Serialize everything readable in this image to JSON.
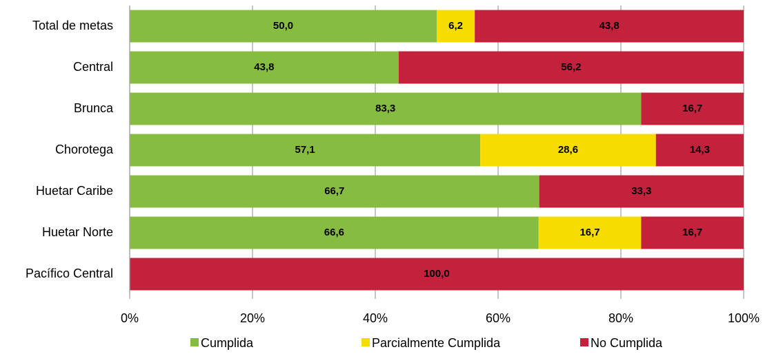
{
  "chart_data": {
    "type": "bar",
    "orientation": "horizontal",
    "stacked": true,
    "categories": [
      "Total de metas",
      "Central",
      "Brunca",
      "Chorotega",
      "Huetar Caribe",
      "Huetar Norte",
      "Pacífico Central"
    ],
    "series": [
      {
        "name": "Cumplida",
        "color": "#86bd40",
        "values": [
          50.0,
          43.8,
          83.3,
          57.1,
          66.7,
          66.6,
          0
        ],
        "value_labels": [
          "50,0",
          "43,8",
          "83,3",
          "57,1",
          "66,7",
          "66,6",
          null
        ]
      },
      {
        "name": "Parcialmente Cumplida",
        "color": "#f7dc00",
        "values": [
          6.2,
          0,
          0,
          28.6,
          0,
          16.7,
          0
        ],
        "value_labels": [
          "6,2",
          null,
          null,
          "28,6",
          null,
          "16,7",
          null
        ]
      },
      {
        "name": "No Cumplida",
        "color": "#c4213d",
        "values": [
          43.8,
          56.2,
          16.7,
          14.3,
          33.3,
          16.7,
          100.0
        ],
        "value_labels": [
          "43,8",
          "56,2",
          "16,7",
          "14,3",
          "33,3",
          "16,7",
          "100,0"
        ]
      }
    ],
    "xlim": [
      0,
      100
    ],
    "xticks": [
      {
        "value": 0,
        "label": "0%"
      },
      {
        "value": 20,
        "label": "20%"
      },
      {
        "value": 40,
        "label": "40%"
      },
      {
        "value": 60,
        "label": "60%"
      },
      {
        "value": 80,
        "label": "80%"
      },
      {
        "value": 100,
        "label": "100%"
      }
    ],
    "grid": true,
    "legend": "bottom"
  }
}
